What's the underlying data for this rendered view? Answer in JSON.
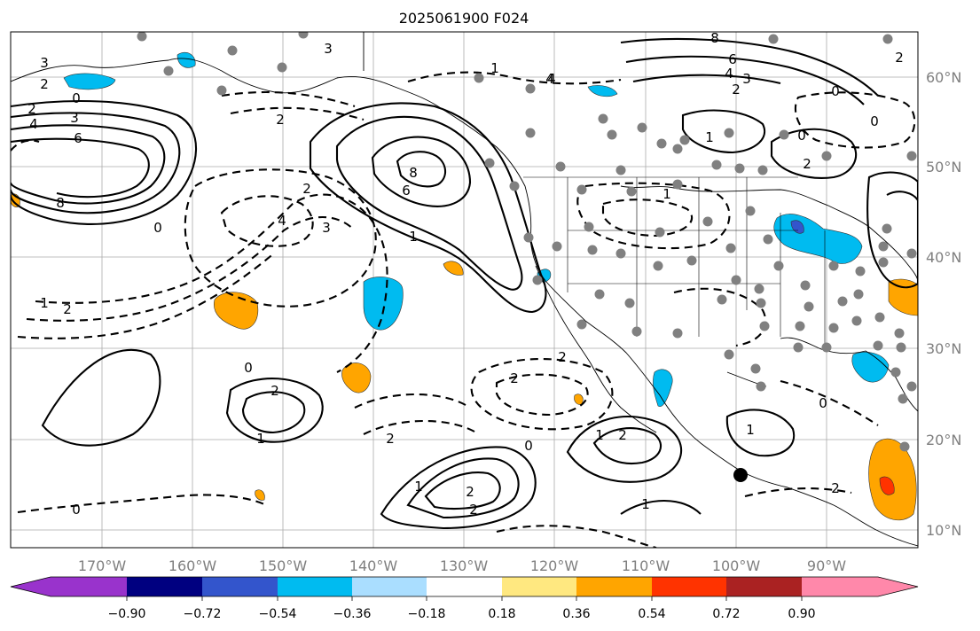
{
  "title": "2025061900 F024",
  "lon_labels": [
    "170°W",
    "160°W",
    "150°W",
    "140°W",
    "130°W",
    "120°W",
    "110°W",
    "100°W",
    "90°W"
  ],
  "lat_labels": [
    "60°N",
    "50°N",
    "40°N",
    "30°N",
    "20°N",
    "10°N"
  ],
  "colorbar": {
    "colors": [
      "#9933cc",
      "#000080",
      "#3355cc",
      "#00bbf0",
      "#aadeff",
      "#ffffff",
      "#ffe880",
      "#ffa500",
      "#ff3300",
      "#aa2222",
      "#ff88aa"
    ],
    "tick_labels": [
      "−0.90",
      "−0.72",
      "−0.54",
      "−0.36",
      "−0.18",
      "0.18",
      "0.36",
      "0.54",
      "0.72",
      "0.90"
    ]
  },
  "contour_labels": [
    "3",
    "2",
    "2",
    "0",
    "3",
    "4",
    "6",
    "8",
    "0",
    "1",
    "2",
    "3",
    "4",
    "2",
    "4",
    "6",
    "8",
    "2",
    "3",
    "1",
    "0",
    "2",
    "1",
    "2",
    "2",
    "0",
    "1",
    "2",
    "2",
    "0",
    "1",
    "2",
    "1",
    "8",
    "6",
    "4",
    "3",
    "2",
    "0",
    "1",
    "0",
    "2",
    "0",
    "1",
    "2",
    "0",
    "2",
    "1",
    "4",
    "1",
    "2"
  ]
}
